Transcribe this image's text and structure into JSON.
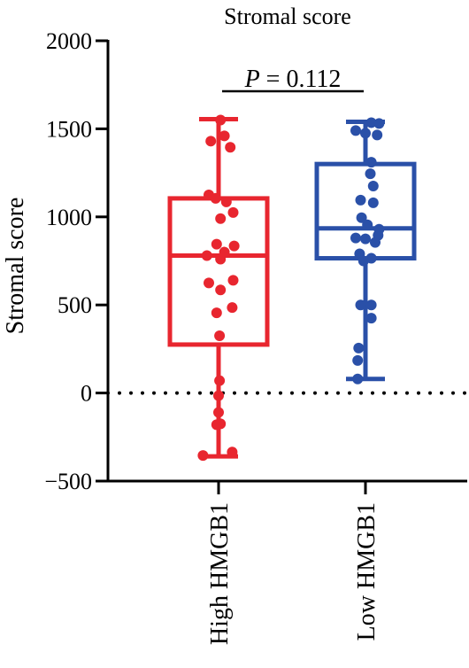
{
  "chart_data": {
    "type": "box",
    "title": "Stromal score",
    "xlabel": "",
    "ylabel": "Stromal score",
    "ylim": [
      -500,
      2000
    ],
    "yticks": [
      2000,
      1500,
      1000,
      500,
      0,
      -500
    ],
    "ytick_labels": [
      "2000",
      "1500",
      "1000",
      "500",
      "0",
      "−500"
    ],
    "reference_line": {
      "y": 0,
      "style": "dotted"
    },
    "categories": [
      "High HMGB1",
      "Low HMGB1"
    ],
    "annotation": {
      "prefix": "P",
      "text": " = 0.112"
    },
    "colors": {
      "high": "#e8262f",
      "low": "#2a50a8",
      "axis": "#000000"
    },
    "series": [
      {
        "name": "High HMGB1",
        "color": "#e8262f",
        "box": {
          "min": -360,
          "q1": 275,
          "median": 780,
          "q3": 1105,
          "max": 1555
        },
        "points": [
          {
            "x": 0.02,
            "y": 1550
          },
          {
            "x": -0.08,
            "y": 1430
          },
          {
            "x": 0.06,
            "y": 1460
          },
          {
            "x": 0.12,
            "y": 1395
          },
          {
            "x": -0.1,
            "y": 1125
          },
          {
            "x": -0.03,
            "y": 1105
          },
          {
            "x": 0.08,
            "y": 1085
          },
          {
            "x": 0.15,
            "y": 1025
          },
          {
            "x": 0.02,
            "y": 990
          },
          {
            "x": 0.16,
            "y": 835
          },
          {
            "x": -0.02,
            "y": 845
          },
          {
            "x": 0.06,
            "y": 800
          },
          {
            "x": -0.12,
            "y": 780
          },
          {
            "x": 0.02,
            "y": 760
          },
          {
            "x": 0.15,
            "y": 640
          },
          {
            "x": -0.1,
            "y": 625
          },
          {
            "x": 0.02,
            "y": 585
          },
          {
            "x": 0.14,
            "y": 485
          },
          {
            "x": -0.02,
            "y": 455
          },
          {
            "x": 0.01,
            "y": 325
          },
          {
            "x": 0.01,
            "y": 70
          },
          {
            "x": 0.0,
            "y": -15
          },
          {
            "x": 0.0,
            "y": -110
          },
          {
            "x": 0.02,
            "y": -175
          },
          {
            "x": -0.02,
            "y": -180
          },
          {
            "x": -0.16,
            "y": -355
          },
          {
            "x": 0.14,
            "y": -335
          }
        ]
      },
      {
        "name": "Low HMGB1",
        "color": "#2a50a8",
        "box": {
          "min": 80,
          "q1": 765,
          "median": 935,
          "q3": 1300,
          "max": 1540
        },
        "points": [
          {
            "x": 0.06,
            "y": 1535
          },
          {
            "x": 0.14,
            "y": 1530
          },
          {
            "x": -0.1,
            "y": 1490
          },
          {
            "x": 0.0,
            "y": 1475
          },
          {
            "x": 0.12,
            "y": 1465
          },
          {
            "x": 0.06,
            "y": 1310
          },
          {
            "x": 0.05,
            "y": 1245
          },
          {
            "x": 0.08,
            "y": 1175
          },
          {
            "x": -0.05,
            "y": 1095
          },
          {
            "x": 0.08,
            "y": 1080
          },
          {
            "x": -0.04,
            "y": 995
          },
          {
            "x": 0.02,
            "y": 955
          },
          {
            "x": 0.14,
            "y": 930
          },
          {
            "x": 0.13,
            "y": 895
          },
          {
            "x": -0.1,
            "y": 880
          },
          {
            "x": 0.0,
            "y": 875
          },
          {
            "x": 0.1,
            "y": 855
          },
          {
            "x": -0.06,
            "y": 790
          },
          {
            "x": 0.06,
            "y": 765
          },
          {
            "x": -0.02,
            "y": 750
          },
          {
            "x": -0.05,
            "y": 500
          },
          {
            "x": 0.06,
            "y": 500
          },
          {
            "x": 0.06,
            "y": 425
          },
          {
            "x": -0.07,
            "y": 255
          },
          {
            "x": -0.08,
            "y": 185
          },
          {
            "x": -0.08,
            "y": 80
          }
        ]
      }
    ]
  }
}
